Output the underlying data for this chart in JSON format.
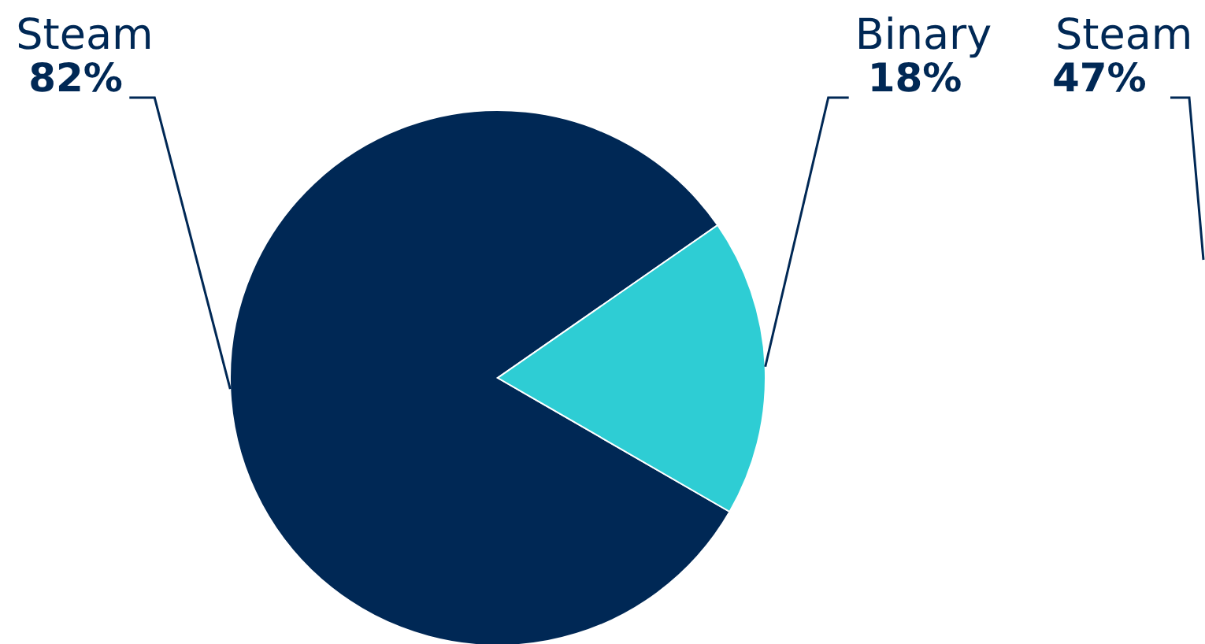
{
  "chart_data": [
    {
      "type": "pie",
      "categories": [
        "Steam",
        "Binary"
      ],
      "values": [
        82,
        18
      ],
      "colors": [
        "#002855",
        "#2ecdd4"
      ],
      "value_labels": [
        "82%",
        "18%"
      ]
    },
    {
      "type": "other",
      "annotations": [
        "Steam",
        "47%"
      ]
    }
  ]
}
